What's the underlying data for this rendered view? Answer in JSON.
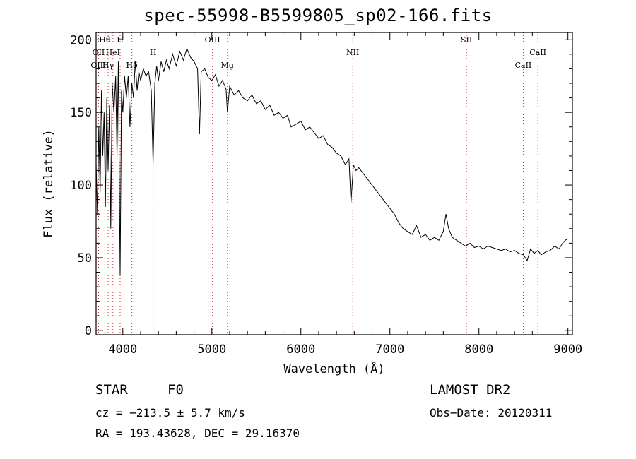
{
  "chart_data": {
    "type": "line",
    "title": "spec-55998-B5599805_sp02-166.fits",
    "xlabel": "Wavelength (Å)",
    "ylabel": "Flux (relative)",
    "xlim": [
      3700,
      9050
    ],
    "ylim": [
      -3,
      205
    ],
    "x_ticks": [
      4000,
      5000,
      6000,
      7000,
      8000,
      9000
    ],
    "y_ticks": [
      0,
      50,
      100,
      150,
      200
    ],
    "grid": false,
    "line_color": "#000000",
    "marker_color": "#cc3333",
    "spectral_lines": [
      {
        "label": "Hθ",
        "x": 3798,
        "row": 0
      },
      {
        "label": "H",
        "x": 3970,
        "row": 0
      },
      {
        "label": "OII",
        "x": 3727,
        "row": 1
      },
      {
        "label": "HeI",
        "x": 3889,
        "row": 1
      },
      {
        "label": "OIII",
        "x": 3727,
        "row": 2
      },
      {
        "label": "Hγ",
        "x": 3835,
        "row": 2
      },
      {
        "label": "Hδ",
        "x": 4102,
        "row": 2
      },
      {
        "label": "H",
        "x": 4340,
        "row": 1
      },
      {
        "label": "OIII",
        "x": 5007,
        "row": 0
      },
      {
        "label": "Mg",
        "x": 5175,
        "row": 2
      },
      {
        "label": "NII",
        "x": 6583,
        "row": 1
      },
      {
        "label": "SII",
        "x": 7860,
        "row": 0
      },
      {
        "label": "CaII",
        "x": 8498,
        "row": 2
      },
      {
        "label": "CaII",
        "x": 8662,
        "row": 1
      }
    ],
    "series": [
      {
        "x": [
          3700,
          3715,
          3730,
          3745,
          3760,
          3775,
          3790,
          3805,
          3820,
          3835,
          3850,
          3865,
          3880,
          3900,
          3920,
          3935,
          3950,
          3970,
          3985,
          4000,
          4020,
          4040,
          4060,
          4080,
          4102,
          4120,
          4140,
          4160,
          4180,
          4200,
          4230,
          4260,
          4290,
          4320,
          4340,
          4360,
          4380,
          4400,
          4430,
          4460,
          4490,
          4520,
          4560,
          4600,
          4640,
          4680,
          4720,
          4760,
          4800,
          4840,
          4861,
          4880,
          4920,
          4960,
          5000,
          5040,
          5080,
          5120,
          5160,
          5175,
          5200,
          5250,
          5300,
          5350,
          5400,
          5450,
          5500,
          5550,
          5600,
          5650,
          5700,
          5750,
          5800,
          5850,
          5890,
          5950,
          6000,
          6050,
          6100,
          6150,
          6200,
          6250,
          6300,
          6350,
          6400,
          6450,
          6500,
          6540,
          6563,
          6590,
          6620,
          6650,
          6700,
          6750,
          6800,
          6850,
          6900,
          6950,
          7000,
          7050,
          7100,
          7150,
          7200,
          7250,
          7300,
          7350,
          7400,
          7450,
          7500,
          7550,
          7600,
          7630,
          7660,
          7700,
          7750,
          7800,
          7850,
          7900,
          7950,
          8000,
          8050,
          8100,
          8150,
          8200,
          8250,
          8300,
          8350,
          8400,
          8450,
          8500,
          8542,
          8580,
          8620,
          8662,
          8700,
          8750,
          8800,
          8850,
          8900,
          8940,
          8970,
          9000
        ],
        "y": [
          115,
          80,
          140,
          95,
          165,
          120,
          150,
          85,
          160,
          110,
          155,
          70,
          170,
          150,
          175,
          120,
          185,
          38,
          165,
          150,
          175,
          160,
          175,
          140,
          170,
          160,
          185,
          165,
          178,
          172,
          180,
          175,
          178,
          165,
          115,
          170,
          182,
          172,
          185,
          178,
          186,
          180,
          190,
          182,
          192,
          186,
          194,
          188,
          185,
          180,
          135,
          178,
          180,
          174,
          172,
          176,
          168,
          172,
          166,
          150,
          168,
          162,
          165,
          160,
          158,
          162,
          156,
          158,
          152,
          155,
          148,
          150,
          146,
          148,
          140,
          142,
          144,
          138,
          140,
          136,
          132,
          134,
          128,
          126,
          122,
          120,
          114,
          118,
          88,
          114,
          110,
          112,
          108,
          104,
          100,
          96,
          92,
          88,
          84,
          80,
          74,
          70,
          68,
          66,
          72,
          64,
          66,
          62,
          64,
          62,
          68,
          80,
          70,
          64,
          62,
          60,
          58,
          60,
          57,
          58,
          56,
          58,
          57,
          56,
          55,
          56,
          54,
          55,
          53,
          52,
          48,
          56,
          53,
          55,
          52,
          54,
          55,
          58,
          56,
          60,
          62,
          63
        ]
      }
    ]
  },
  "info": {
    "object_type": "STAR",
    "subclass": "F0",
    "cz": "cz = −213.5 ± 5.7 km/s",
    "radec": "RA = 193.43628, DEC =  29.16370",
    "survey": "LAMOST DR2",
    "obs_date": "Obs−Date: 20120311"
  }
}
